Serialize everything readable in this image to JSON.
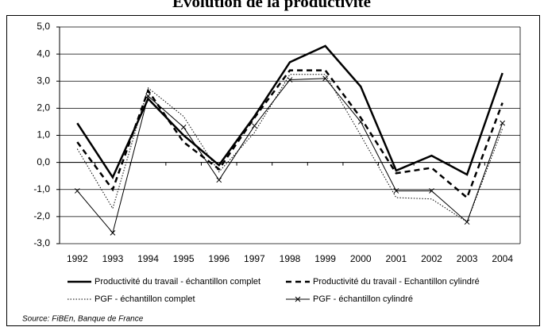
{
  "chart_data": {
    "type": "line",
    "title": "Evolution de la productivité",
    "source": "Source: FiBEn, Banque de France",
    "categories": [
      "1992",
      "1993",
      "1994",
      "1995",
      "1996",
      "1997",
      "1998",
      "1999",
      "2000",
      "2001",
      "2002",
      "2003",
      "2004"
    ],
    "series": [
      {
        "name": "Productivité du travail - échantillon complet",
        "color": "#000000",
        "style": "solid",
        "width": 2.5,
        "values": [
          1.45,
          -0.55,
          2.35,
          1.0,
          -0.1,
          1.7,
          3.7,
          4.3,
          2.8,
          -0.3,
          0.25,
          -0.45,
          3.3
        ]
      },
      {
        "name": "Productivité du travail - Echantillon cylindré",
        "color": "#000000",
        "style": "dashed",
        "width": 2.5,
        "values": [
          0.75,
          -1.0,
          2.65,
          0.75,
          -0.25,
          1.65,
          3.4,
          3.4,
          1.65,
          -0.4,
          -0.2,
          -1.3,
          2.2
        ]
      },
      {
        "name": "PGF - échantillon complet",
        "color": "#000000",
        "style": "dotted",
        "width": 1,
        "values": [
          0.5,
          -1.7,
          2.75,
          1.7,
          -0.35,
          1.1,
          3.25,
          3.25,
          1.0,
          -1.3,
          -1.35,
          -2.2,
          1.25
        ]
      },
      {
        "name": "PGF - échantillon cylindré",
        "color": "#000000",
        "style": "solid",
        "width": 1,
        "marker": "x",
        "values": [
          -1.05,
          -2.6,
          2.45,
          1.3,
          -0.65,
          1.35,
          3.05,
          3.1,
          1.5,
          -1.05,
          -1.05,
          -2.2,
          1.45
        ]
      }
    ],
    "ylim": [
      -3,
      5
    ],
    "yticks": [
      {
        "value": -3,
        "label": "-3,0"
      },
      {
        "value": -2,
        "label": "-2,0"
      },
      {
        "value": -1,
        "label": "-1,0"
      },
      {
        "value": 0,
        "label": "0,0"
      },
      {
        "value": 1,
        "label": "1,0"
      },
      {
        "value": 2,
        "label": "2,0"
      },
      {
        "value": 3,
        "label": "3,0"
      },
      {
        "value": 4,
        "label": "4,0"
      },
      {
        "value": 5,
        "label": "5,0"
      }
    ],
    "grid": true
  }
}
